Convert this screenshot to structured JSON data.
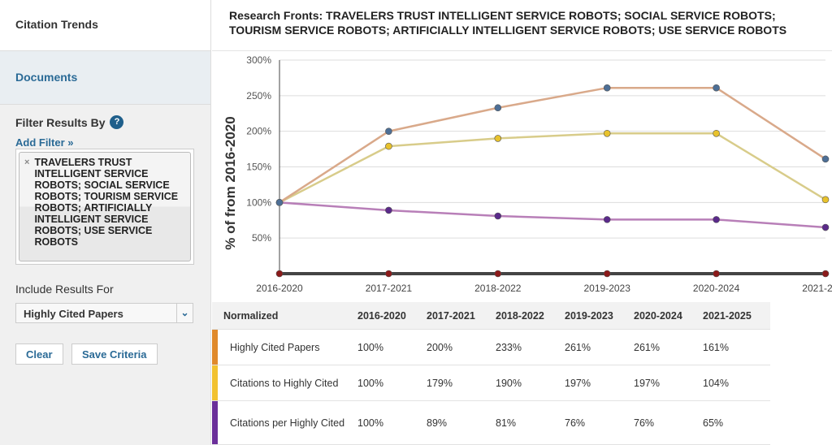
{
  "sidebar": {
    "citation_trends": "Citation Trends",
    "documents": "Documents",
    "filter_heading": "Filter Results By",
    "help_icon": "?",
    "add_filter": "Add Filter »",
    "filter_value": "TRAVELERS TRUST INTELLIGENT SERVICE ROBOTS; SOCIAL SERVICE ROBOTS; TOURISM SERVICE ROBOTS; ARTIFICIALLY INTELLIGENT SERVICE ROBOTS; USE SERVICE ROBOTS",
    "remove_icon": "×",
    "include_heading": "Include Results For",
    "include_value": "Highly Cited Papers",
    "clear": "Clear",
    "save": "Save Criteria"
  },
  "header": {
    "title": "Research Fronts: TRAVELERS TRUST INTELLIGENT SERVICE ROBOTS; SOCIAL SERVICE ROBOTS; TOURISM SERVICE ROBOTS; ARTIFICIALLY INTELLIGENT SERVICE ROBOTS; USE SERVICE ROBOTS"
  },
  "chart_data": {
    "type": "line",
    "ylabel": "% of from 2016-2020",
    "categories": [
      "2016-2020",
      "2017-2021",
      "2018-2022",
      "2019-2023",
      "2020-2024",
      "2021-2025"
    ],
    "yticks": [
      "300%",
      "250%",
      "200%",
      "150%",
      "100%",
      "50%"
    ],
    "ylim": [
      0,
      300
    ],
    "grid": true,
    "series": [
      {
        "name": "Highly Cited Papers",
        "values": [
          100,
          200,
          233,
          261,
          261,
          161
        ],
        "color": "#e08a2c",
        "line": "#d9a98a",
        "marker": "#4d6f96"
      },
      {
        "name": "Citations to Highly Cited",
        "values": [
          100,
          179,
          190,
          197,
          197,
          104
        ],
        "color": "#f2c230",
        "line": "#d8cc8a",
        "marker": "#e8c22c"
      },
      {
        "name": "Citations per Highly Cited",
        "values": [
          100,
          89,
          81,
          76,
          76,
          65
        ],
        "color": "#6b2f9a",
        "line": "#b87fb8",
        "marker": "#5a2a8a"
      },
      {
        "values": [
          0,
          0,
          0,
          0,
          0,
          0
        ],
        "line": "#444",
        "marker": "#8b1a1a"
      }
    ]
  },
  "table": {
    "header": "Normalized",
    "rows": [
      {
        "label": "Highly Cited Papers",
        "values": [
          "100%",
          "200%",
          "233%",
          "261%",
          "261%",
          "161%"
        ]
      },
      {
        "label": "Citations to Highly Cited",
        "values": [
          "100%",
          "179%",
          "190%",
          "197%",
          "197%",
          "104%"
        ]
      },
      {
        "label": "Citations per Highly Cited",
        "values": [
          "100%",
          "89%",
          "81%",
          "76%",
          "76%",
          "65%"
        ]
      }
    ]
  }
}
